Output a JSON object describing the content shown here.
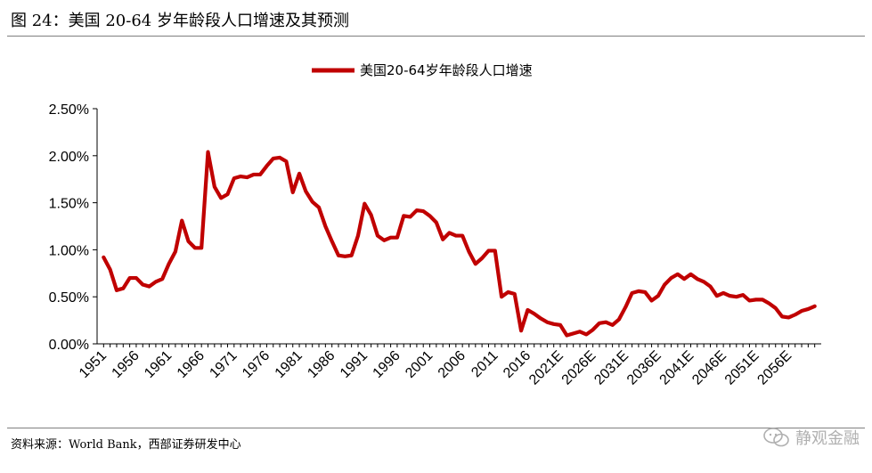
{
  "figure": {
    "title": "图 24：美国 20-64 岁年龄段人口增速及其预测",
    "source": "资料来源：World Bank，西部证券研发中心",
    "watermark": "静观金融",
    "watermark_icon": "wechat-icon"
  },
  "chart_data": {
    "type": "line",
    "title": "",
    "xlabel": "",
    "ylabel": "",
    "ylim": [
      0,
      0.025
    ],
    "y_ticks": [
      "0.00%",
      "0.50%",
      "1.00%",
      "1.50%",
      "2.00%",
      "2.50%"
    ],
    "x_tick_labels": [
      "1951",
      "1956",
      "1961",
      "1966",
      "1971",
      "1976",
      "1981",
      "1986",
      "1991",
      "1996",
      "2001",
      "2006",
      "2011",
      "2016",
      "2021E",
      "2026E",
      "2031E",
      "2036E",
      "2041E",
      "2046E",
      "2051E",
      "2056E"
    ],
    "grid": false,
    "legend_position": "top-center",
    "color": "#c00000",
    "x_start": 1951,
    "series": [
      {
        "name": "美国20-64岁年龄段人口增速",
        "values": [
          0.0092,
          0.0079,
          0.0057,
          0.0059,
          0.007,
          0.007,
          0.0063,
          0.0061,
          0.0066,
          0.0069,
          0.0085,
          0.0098,
          0.0131,
          0.0109,
          0.0102,
          0.0102,
          0.0204,
          0.0167,
          0.0155,
          0.0159,
          0.0176,
          0.0178,
          0.0177,
          0.018,
          0.018,
          0.0189,
          0.0197,
          0.0198,
          0.0194,
          0.0161,
          0.0181,
          0.0162,
          0.0151,
          0.0145,
          0.0125,
          0.0109,
          0.0094,
          0.0093,
          0.0094,
          0.0115,
          0.0149,
          0.0137,
          0.0115,
          0.011,
          0.0113,
          0.0113,
          0.0136,
          0.0135,
          0.0142,
          0.0141,
          0.0136,
          0.0129,
          0.0111,
          0.0118,
          0.0115,
          0.0115,
          0.0098,
          0.0085,
          0.0091,
          0.0099,
          0.0099,
          0.005,
          0.0055,
          0.0053,
          0.0014,
          0.0036,
          0.0032,
          0.0027,
          0.0023,
          0.0021,
          0.002,
          0.0009,
          0.0011,
          0.0013,
          0.001,
          0.0015,
          0.0022,
          0.0023,
          0.002,
          0.0026,
          0.0039,
          0.0054,
          0.0056,
          0.0055,
          0.0046,
          0.0051,
          0.0063,
          0.007,
          0.0074,
          0.0069,
          0.0074,
          0.0069,
          0.0066,
          0.0061,
          0.0051,
          0.0054,
          0.0051,
          0.005,
          0.0052,
          0.0046,
          0.0047,
          0.0047,
          0.0043,
          0.0038,
          0.0029,
          0.0028,
          0.0031,
          0.0035,
          0.0037,
          0.004
        ]
      }
    ]
  }
}
